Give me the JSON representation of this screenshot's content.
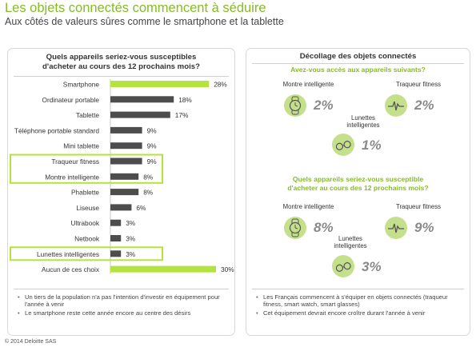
{
  "header": {
    "title": "Les objets connectés commencent à séduire",
    "subtitle": "Aux côtés de valeurs sûres comme le smartphone et la tablette"
  },
  "left_panel": {
    "title_line1": "Quels appareils seriez-vous susceptibles",
    "title_line2": "d'acheter au cours des 12 prochains mois?",
    "notes": [
      "Un tiers de la population n'a pas l'intention d'investir en équipement pour l'année à venir",
      "Le smartphone reste cette année encore au centre des désirs"
    ]
  },
  "chart_data": {
    "type": "bar",
    "orientation": "horizontal",
    "categories": [
      "Smartphone",
      "Ordinateur portable",
      "Tablette",
      "Téléphone portable standard",
      "Mini tablette",
      "Traqueur fitness",
      "Montre intelligente",
      "Phablette",
      "Liseuse",
      "Ultrabook",
      "Netbook",
      "Lunettes intelligentes",
      "Aucun de ces choix"
    ],
    "values": [
      28,
      18,
      17,
      9,
      9,
      9,
      8,
      8,
      6,
      3,
      3,
      3,
      30
    ],
    "value_labels": [
      "28%",
      "18%",
      "17%",
      "9%",
      "9%",
      "9%",
      "8%",
      "8%",
      "6%",
      "3%",
      "3%",
      "3%",
      "30%"
    ],
    "highlighted": [
      "Smartphone",
      "Aucun de ces choix"
    ],
    "boxed_groups": [
      [
        "Traqueur fitness",
        "Montre intelligente"
      ],
      [
        "Lunettes intelligentes"
      ]
    ],
    "colors": {
      "highlight": "#b5e33d",
      "normal": "#4d4d4d",
      "box": "#b5e33d"
    }
  },
  "right_panel": {
    "title": "Décollage des objets connectés",
    "q1": "Avez-vous accès aux appareils suivants?",
    "q1_items": [
      {
        "label": "Montre intelligente",
        "value": "2%",
        "icon": "watch-icon"
      },
      {
        "label": "Traqueur fitness",
        "value": "2%",
        "icon": "pulse-icon"
      },
      {
        "label_line1": "Lunettes",
        "label_line2": "intelligentes",
        "value": "1%",
        "icon": "glasses-icon"
      }
    ],
    "q2_line1": "Quels appareils seriez-vous susceptible",
    "q2_line2": "d'acheter au cours des 12 prochains mois?",
    "q2_items": [
      {
        "label": "Montre intelligente",
        "value": "8%",
        "icon": "watch-icon"
      },
      {
        "label": "Traqueur fitness",
        "value": "9%",
        "icon": "pulse-icon"
      },
      {
        "label_line1": "Lunettes",
        "label_line2": "intelligentes",
        "value": "3%",
        "icon": "glasses-icon"
      }
    ],
    "notes": [
      "Les Français commencent à s'équiper en objets connectés (traqueur fitness, smart watch, smart glasses)",
      "Cet équipement devrait encore croître durant l'année à venir"
    ]
  },
  "footer": {
    "copyright": "© 2014 Deloitte SAS"
  }
}
